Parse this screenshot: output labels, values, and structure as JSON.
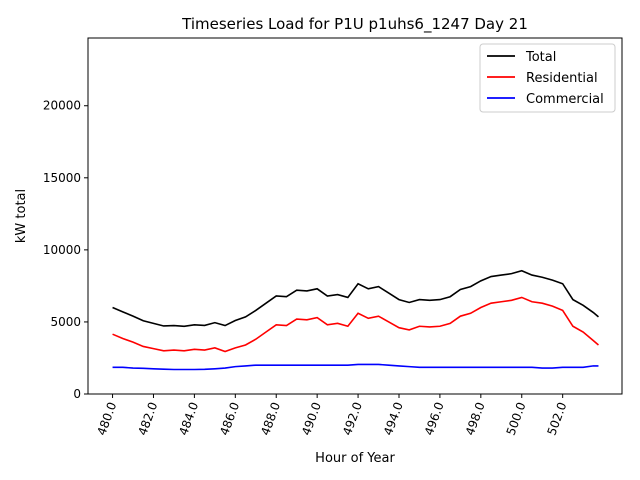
{
  "chart_data": {
    "type": "line",
    "title": "Timeseries Load for P1U p1uhs6_1247  Day 21",
    "xlabel": "Hour of Year",
    "ylabel": "kW total",
    "xlim": [
      478.8,
      504.9
    ],
    "ylim": [
      0,
      24700
    ],
    "xticks": [
      480,
      482,
      484,
      486,
      488,
      490,
      492,
      494,
      496,
      498,
      500,
      502
    ],
    "xtick_labels": [
      "480.0",
      "482.0",
      "484.0",
      "486.0",
      "488.0",
      "490.0",
      "492.0",
      "494.0",
      "496.0",
      "498.0",
      "500.0",
      "502.0"
    ],
    "yticks": [
      0,
      5000,
      10000,
      15000,
      20000
    ],
    "ytick_labels": [
      "0",
      "5000",
      "10000",
      "15000",
      "20000"
    ],
    "grid": false,
    "legend_position": "top-right",
    "x": [
      480,
      480.5,
      481,
      481.5,
      482,
      482.5,
      483,
      483.5,
      484,
      484.5,
      485,
      485.5,
      486,
      486.5,
      487,
      487.5,
      488,
      488.5,
      489,
      489.5,
      490,
      490.5,
      491,
      491.5,
      492,
      492.5,
      493,
      493.5,
      494,
      494.5,
      495,
      495.5,
      496,
      496.5,
      497,
      497.5,
      498,
      498.5,
      499,
      499.5,
      500,
      500.5,
      501,
      501.5,
      502,
      502.5,
      503,
      503.5,
      503.75
    ],
    "series": [
      {
        "name": "Total",
        "color": "#000000",
        "values": [
          6000,
          5700,
          5400,
          5080,
          4900,
          4720,
          4750,
          4700,
          4800,
          4760,
          4950,
          4750,
          5100,
          5350,
          5800,
          6300,
          6800,
          6750,
          7200,
          7150,
          7300,
          6800,
          6900,
          6700,
          7650,
          7300,
          7450,
          7000,
          6550,
          6350,
          6550,
          6500,
          6550,
          6750,
          7250,
          7450,
          7850,
          8150,
          8250,
          8350,
          8550,
          8250,
          8100,
          7900,
          7650,
          6550,
          6150,
          5650,
          5350
        ]
      },
      {
        "name": "Residential",
        "color": "#ff0000",
        "values": [
          4150,
          3850,
          3600,
          3300,
          3150,
          3000,
          3050,
          3000,
          3100,
          3050,
          3200,
          2950,
          3200,
          3400,
          3800,
          4300,
          4800,
          4750,
          5200,
          5150,
          5300,
          4800,
          4900,
          4700,
          5600,
          5250,
          5400,
          5000,
          4600,
          4450,
          4700,
          4650,
          4700,
          4900,
          5400,
          5600,
          6000,
          6300,
          6400,
          6500,
          6700,
          6400,
          6300,
          6100,
          5800,
          4700,
          4300,
          3700,
          3400
        ]
      },
      {
        "name": "Commercial",
        "color": "#0000ff",
        "values": [
          1850,
          1850,
          1800,
          1780,
          1750,
          1720,
          1700,
          1700,
          1700,
          1710,
          1750,
          1800,
          1900,
          1950,
          2000,
          2000,
          2000,
          2000,
          2000,
          2000,
          2000,
          2000,
          2000,
          2000,
          2050,
          2050,
          2050,
          2000,
          1950,
          1900,
          1850,
          1850,
          1850,
          1850,
          1850,
          1850,
          1850,
          1850,
          1850,
          1850,
          1850,
          1850,
          1800,
          1800,
          1850,
          1850,
          1850,
          1950,
          1950
        ]
      }
    ]
  }
}
